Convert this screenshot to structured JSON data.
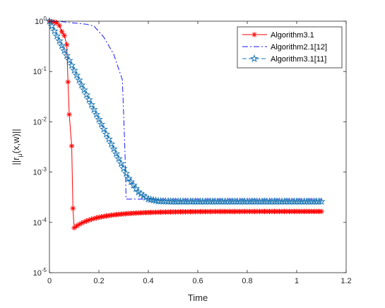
{
  "chart_data": {
    "type": "line",
    "xlabel": "Time",
    "ylabel": "||r_μ(x,w)||",
    "ylabel_parts": {
      "prefix": "||r",
      "subscript": "μ",
      "suffix": "(x,w)||"
    },
    "xlim": [
      0,
      1.2
    ],
    "ylim": [
      1e-05,
      1
    ],
    "yscale": "log",
    "x_ticks": [
      "0",
      "0.2",
      "0.4",
      "0.6",
      "0.8",
      "1",
      "1.2"
    ],
    "y_ticks": [
      {
        "base": "10",
        "exp": "0"
      },
      {
        "base": "10",
        "exp": "-1"
      },
      {
        "base": "10",
        "exp": "-2"
      },
      {
        "base": "10",
        "exp": "-3"
      },
      {
        "base": "10",
        "exp": "-4"
      },
      {
        "base": "10",
        "exp": "-5"
      }
    ],
    "grid": false,
    "legend_position": "top-right",
    "series": [
      {
        "name": "Algorithm3.1",
        "color": "#ff0000",
        "line_style": "solid",
        "marker": "asterisk",
        "marker_every": 1,
        "points": [
          [
            0.0,
            1.0
          ],
          [
            0.01,
            0.98
          ],
          [
            0.02,
            0.96
          ],
          [
            0.03,
            0.93
          ],
          [
            0.04,
            0.82
          ],
          [
            0.05,
            0.62
          ],
          [
            0.06,
            0.52
          ],
          [
            0.07,
            0.34
          ],
          [
            0.075,
            0.062
          ],
          [
            0.08,
            0.014
          ],
          [
            0.09,
            0.0033
          ],
          [
            0.095,
            0.00019
          ],
          [
            0.1,
            7.8e-05
          ]
        ],
        "tail": {
          "x_start": 0.1,
          "x_end": 1.1,
          "y_start": 7.8e-05,
          "y_end": 0.000165,
          "rate": 8,
          "step": 0.01
        }
      },
      {
        "name": "Algorithm2.1[12]",
        "color": "#1a1aff",
        "line_style": "dashdot",
        "marker": "none",
        "points": [
          [
            0.0,
            1.0
          ],
          [
            0.05,
            0.98
          ],
          [
            0.1,
            0.92
          ],
          [
            0.15,
            0.87
          ],
          [
            0.18,
            0.8
          ],
          [
            0.22,
            0.48
          ],
          [
            0.26,
            0.22
          ],
          [
            0.295,
            0.068
          ],
          [
            0.305,
            0.003
          ],
          [
            0.31,
            0.00029
          ],
          [
            0.5,
            0.00029
          ],
          [
            1.1,
            0.00029
          ]
        ]
      },
      {
        "name": "Algorithm3.1[11]",
        "color": "#1f77b4",
        "line_style": "dashed",
        "marker": "star",
        "marker_every": 1,
        "points": [
          [
            0.0,
            1.0
          ],
          [
            0.32,
            0.00075
          ],
          [
            0.36,
            0.0004
          ],
          [
            0.4,
            0.00029
          ],
          [
            0.44,
            0.000265
          ],
          [
            0.5,
            0.00026
          ],
          [
            1.1,
            0.00026
          ]
        ],
        "sample_step": 0.01
      }
    ]
  }
}
